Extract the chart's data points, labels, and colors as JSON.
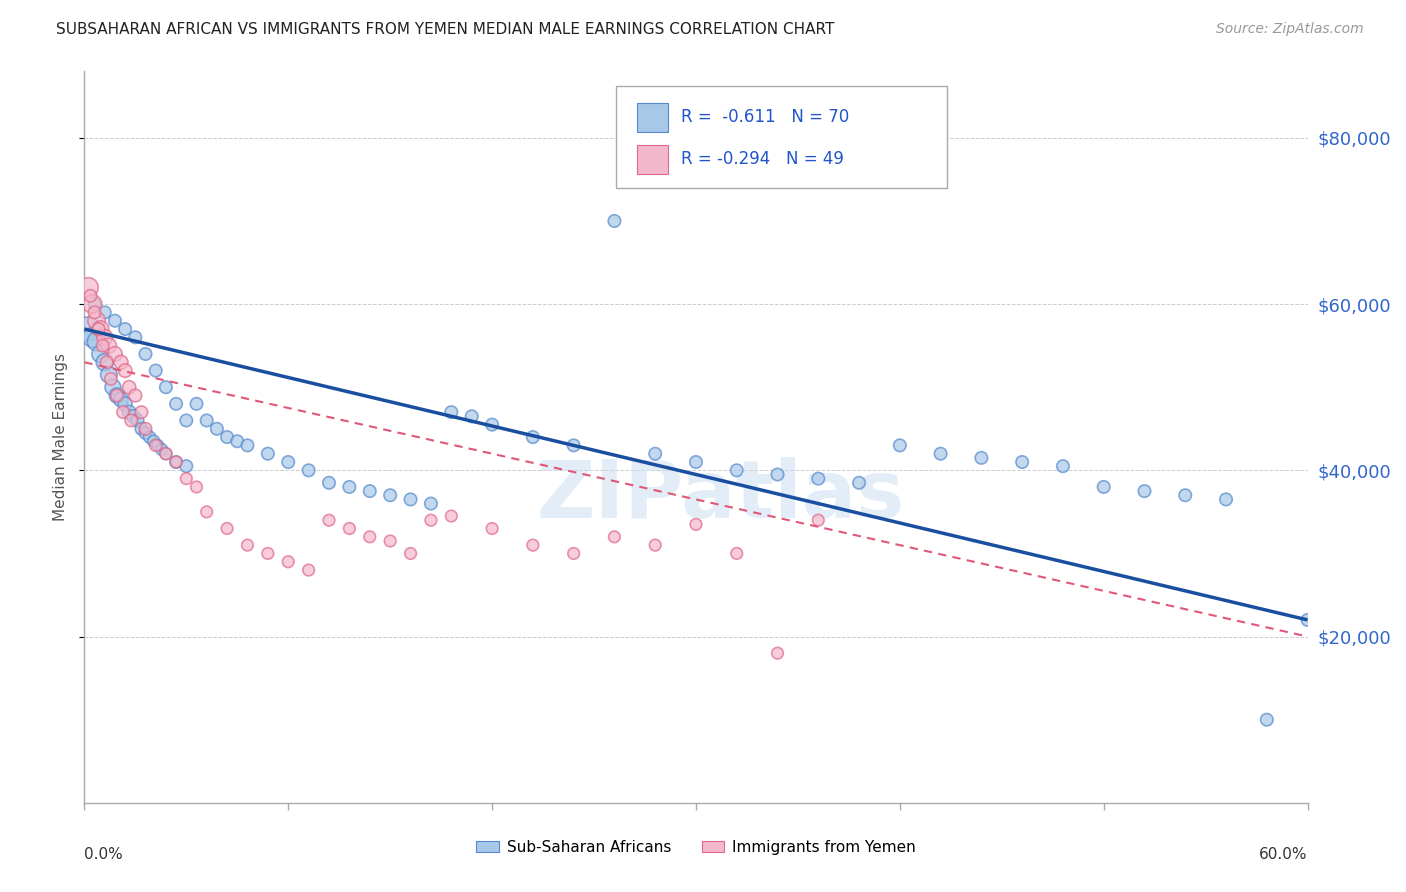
{
  "title": "SUBSAHARAN AFRICAN VS IMMIGRANTS FROM YEMEN MEDIAN MALE EARNINGS CORRELATION CHART",
  "source": "Source: ZipAtlas.com",
  "ylabel": "Median Male Earnings",
  "ytick_values": [
    20000,
    40000,
    60000,
    80000
  ],
  "ytick_labels": [
    "$20,000",
    "$40,000",
    "$60,000",
    "$80,000"
  ],
  "ymin": 0,
  "ymax": 88000,
  "xmin": 0.0,
  "xmax": 0.6,
  "color_blue": "#a8c8e8",
  "color_pink": "#f4b8cc",
  "edge_blue": "#5588cc",
  "edge_pink": "#e06888",
  "line_blue": "#1a4fa0",
  "line_pink": "#e05878",
  "watermark": "ZIPatlas",
  "blue_trend": [
    0.0,
    57000,
    0.6,
    22000
  ],
  "pink_trend": [
    0.0,
    53000,
    0.6,
    20000
  ],
  "background_color": "#ffffff",
  "grid_color": "#cccccc",
  "blue_x": [
    0.002,
    0.004,
    0.006,
    0.008,
    0.01,
    0.012,
    0.014,
    0.016,
    0.018,
    0.02,
    0.022,
    0.024,
    0.026,
    0.028,
    0.03,
    0.032,
    0.034,
    0.036,
    0.038,
    0.04,
    0.045,
    0.05,
    0.055,
    0.06,
    0.065,
    0.07,
    0.075,
    0.08,
    0.09,
    0.1,
    0.11,
    0.12,
    0.13,
    0.14,
    0.15,
    0.16,
    0.17,
    0.18,
    0.19,
    0.2,
    0.22,
    0.24,
    0.26,
    0.28,
    0.3,
    0.32,
    0.34,
    0.36,
    0.38,
    0.4,
    0.42,
    0.44,
    0.46,
    0.48,
    0.5,
    0.52,
    0.54,
    0.56,
    0.58,
    0.6,
    0.005,
    0.01,
    0.015,
    0.02,
    0.025,
    0.03,
    0.035,
    0.04,
    0.045,
    0.05
  ],
  "blue_y": [
    57000,
    56000,
    55500,
    54000,
    53000,
    51500,
    50000,
    49000,
    48500,
    48000,
    47000,
    46500,
    46000,
    45000,
    44500,
    44000,
    43500,
    43000,
    42500,
    42000,
    41000,
    40500,
    48000,
    46000,
    45000,
    44000,
    43500,
    43000,
    42000,
    41000,
    40000,
    38500,
    38000,
    37500,
    37000,
    36500,
    36000,
    47000,
    46500,
    45500,
    44000,
    43000,
    70000,
    42000,
    41000,
    40000,
    39500,
    39000,
    38500,
    43000,
    42000,
    41500,
    41000,
    40500,
    38000,
    37500,
    37000,
    36500,
    10000,
    22000,
    60000,
    59000,
    58000,
    57000,
    56000,
    54000,
    52000,
    50000,
    48000,
    46000
  ],
  "blue_sizes": [
    300,
    200,
    180,
    160,
    150,
    140,
    130,
    120,
    110,
    100,
    95,
    90,
    85,
    80,
    80,
    75,
    75,
    70,
    70,
    70,
    80,
    80,
    80,
    80,
    80,
    80,
    80,
    80,
    80,
    80,
    80,
    80,
    80,
    80,
    80,
    80,
    80,
    80,
    80,
    80,
    80,
    80,
    80,
    80,
    80,
    80,
    80,
    80,
    80,
    80,
    80,
    80,
    80,
    80,
    80,
    80,
    80,
    80,
    80,
    80,
    80,
    80,
    80,
    80,
    80,
    80,
    80,
    80,
    80,
    80
  ],
  "pink_x": [
    0.002,
    0.004,
    0.006,
    0.008,
    0.01,
    0.012,
    0.015,
    0.018,
    0.02,
    0.022,
    0.025,
    0.028,
    0.03,
    0.035,
    0.04,
    0.045,
    0.05,
    0.055,
    0.06,
    0.07,
    0.08,
    0.09,
    0.1,
    0.11,
    0.12,
    0.13,
    0.14,
    0.15,
    0.16,
    0.17,
    0.18,
    0.2,
    0.22,
    0.24,
    0.26,
    0.28,
    0.3,
    0.32,
    0.34,
    0.36,
    0.003,
    0.005,
    0.007,
    0.009,
    0.011,
    0.013,
    0.016,
    0.019,
    0.023
  ],
  "pink_y": [
    62000,
    60000,
    58000,
    57000,
    56000,
    55000,
    54000,
    53000,
    52000,
    50000,
    49000,
    47000,
    45000,
    43000,
    42000,
    41000,
    39000,
    38000,
    35000,
    33000,
    31000,
    30000,
    29000,
    28000,
    34000,
    33000,
    32000,
    31500,
    30000,
    34000,
    34500,
    33000,
    31000,
    30000,
    32000,
    31000,
    33500,
    30000,
    18000,
    34000,
    61000,
    59000,
    57000,
    55000,
    53000,
    51000,
    49000,
    47000,
    46000
  ],
  "pink_sizes": [
    200,
    180,
    160,
    140,
    130,
    120,
    110,
    100,
    95,
    90,
    85,
    80,
    80,
    75,
    75,
    70,
    70,
    70,
    70,
    70,
    70,
    70,
    70,
    70,
    70,
    70,
    70,
    70,
    70,
    70,
    70,
    70,
    70,
    70,
    70,
    70,
    70,
    70,
    70,
    70,
    80,
    80,
    80,
    80,
    80,
    80,
    80,
    80,
    80
  ]
}
